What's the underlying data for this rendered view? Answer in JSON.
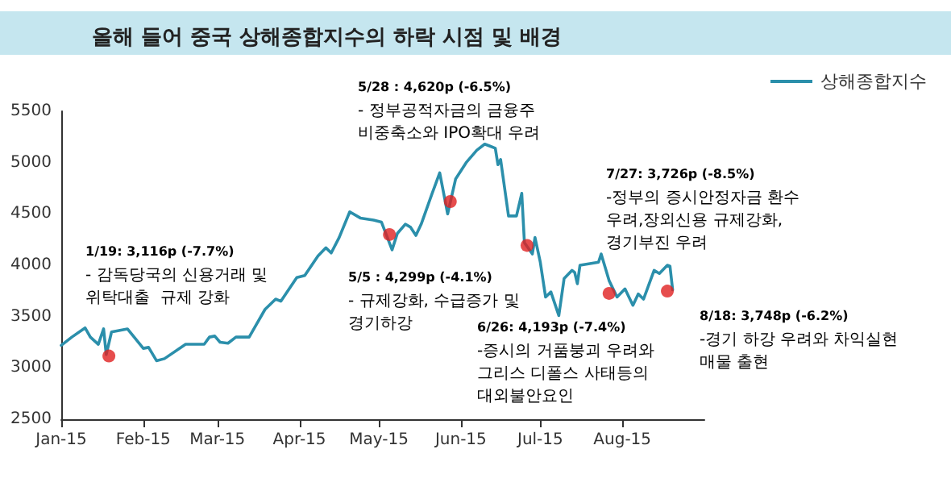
{
  "chart_data": {
    "type": "line",
    "title": "올해 들어 중국 상해종합지수의 하락 시점 및 배경",
    "xlim": [
      "2015-01-01",
      "2015-09-01"
    ],
    "xticks": [
      {
        "value": "2015-01-01",
        "label": "Jan-15"
      },
      {
        "value": "2015-02-01",
        "label": "Feb-15"
      },
      {
        "value": "2015-03-01",
        "label": "Mar-15"
      },
      {
        "value": "2015-04-01",
        "label": "Apr-15"
      },
      {
        "value": "2015-05-01",
        "label": "May-15"
      },
      {
        "value": "2015-06-01",
        "label": "Jun-15"
      },
      {
        "value": "2015-07-01",
        "label": "Jul-15"
      },
      {
        "value": "2015-08-01",
        "label": "Aug-15"
      }
    ],
    "ylim": [
      2500,
      5500
    ],
    "yticks": [
      2500,
      3000,
      3500,
      4000,
      4500,
      5000,
      5500
    ],
    "grid": false,
    "legend": "top right",
    "marker": "none",
    "line_style": "solid",
    "series": [
      {
        "name": "상해종합지수",
        "color": "#2b8fab",
        "x": [
          "2015-01-01",
          "2015-01-05",
          "2015-01-10",
          "2015-01-12",
          "2015-01-15",
          "2015-01-17",
          "2015-01-18",
          "2015-01-20",
          "2015-01-26",
          "2015-02-01",
          "2015-02-03",
          "2015-02-06",
          "2015-02-09",
          "2015-02-17",
          "2015-02-24",
          "2015-02-26",
          "2015-02-28",
          "2015-03-02",
          "2015-03-05",
          "2015-03-08",
          "2015-03-13",
          "2015-03-15",
          "2015-03-19",
          "2015-03-23",
          "2015-03-25",
          "2015-03-31",
          "2015-04-03",
          "2015-04-08",
          "2015-04-11",
          "2015-04-13",
          "2015-04-16",
          "2015-04-20",
          "2015-04-24",
          "2015-04-29",
          "2015-05-02",
          "2015-05-06",
          "2015-05-08",
          "2015-05-11",
          "2015-05-13",
          "2015-05-15",
          "2015-05-17",
          "2015-05-21",
          "2015-05-24",
          "2015-05-27",
          "2015-05-30",
          "2015-06-03",
          "2015-06-07",
          "2015-06-10",
          "2015-06-12",
          "2015-06-14",
          "2015-06-15",
          "2015-06-16",
          "2015-06-19",
          "2015-06-22",
          "2015-06-24",
          "2015-06-25",
          "2015-06-28",
          "2015-06-29",
          "2015-07-01",
          "2015-07-03",
          "2015-07-05",
          "2015-07-08",
          "2015-07-10",
          "2015-07-13",
          "2015-07-14",
          "2015-07-15",
          "2015-07-16",
          "2015-07-23",
          "2015-07-24",
          "2015-07-27",
          "2015-07-30",
          "2015-08-02",
          "2015-08-05",
          "2015-08-07",
          "2015-08-09",
          "2015-08-13",
          "2015-08-15",
          "2015-08-18",
          "2015-08-19",
          "2015-08-20"
        ],
        "values": [
          3220,
          3300,
          3390,
          3300,
          3230,
          3380,
          3130,
          3350,
          3380,
          3190,
          3200,
          3070,
          3090,
          3230,
          3230,
          3300,
          3310,
          3250,
          3240,
          3300,
          3300,
          3390,
          3570,
          3670,
          3650,
          3880,
          3900,
          4090,
          4170,
          4120,
          4270,
          4520,
          4460,
          4440,
          4420,
          4150,
          4310,
          4400,
          4370,
          4290,
          4400,
          4690,
          4900,
          4500,
          4840,
          5000,
          5120,
          5180,
          5160,
          5140,
          4980,
          5030,
          4480,
          4480,
          4700,
          4220,
          4110,
          4270,
          4030,
          3690,
          3740,
          3510,
          3870,
          3950,
          3930,
          3820,
          4000,
          4030,
          4110,
          3850,
          3690,
          3770,
          3610,
          3720,
          3670,
          3950,
          3920,
          4000,
          3990,
          3760
        ]
      },
      {
        "type": "scatter",
        "color": "#e02020",
        "marker": "circle",
        "x": [
          "2015-01-19",
          "2015-05-05",
          "2015-05-28",
          "2015-06-26",
          "2015-07-27",
          "2015-08-18"
        ],
        "values": [
          3116,
          4299,
          4620,
          4193,
          3726,
          3748
        ]
      }
    ],
    "annotations": [
      "1/19: 3,116p (-7.7%)\n- 감독당국의 신용거래 및\n위탁대출  규제 강화",
      "5/5 : 4,299p (-4.1%)\n- 규제강화, 수급증가 및\n경기하강",
      "5/28 : 4,620p (-6.5%)\n- 정부공적자금의 금융주\n비중축소와 IPO확대 우려",
      "6/26: 4,193p (-7.4%)\n-증시의 거품붕괴 우려와\n그리스 디폴스 사태등의\n대외불안요인",
      "7/27: 3,726p (-8.5%)\n-정부의 증시안정자금 환수\n우려,장외신용 규제강화,\n경기부진 우려",
      "8/18: 3,748p (-6.2%)\n-경기 하강 우려와 차익실현\n매물 출현"
    ]
  }
}
